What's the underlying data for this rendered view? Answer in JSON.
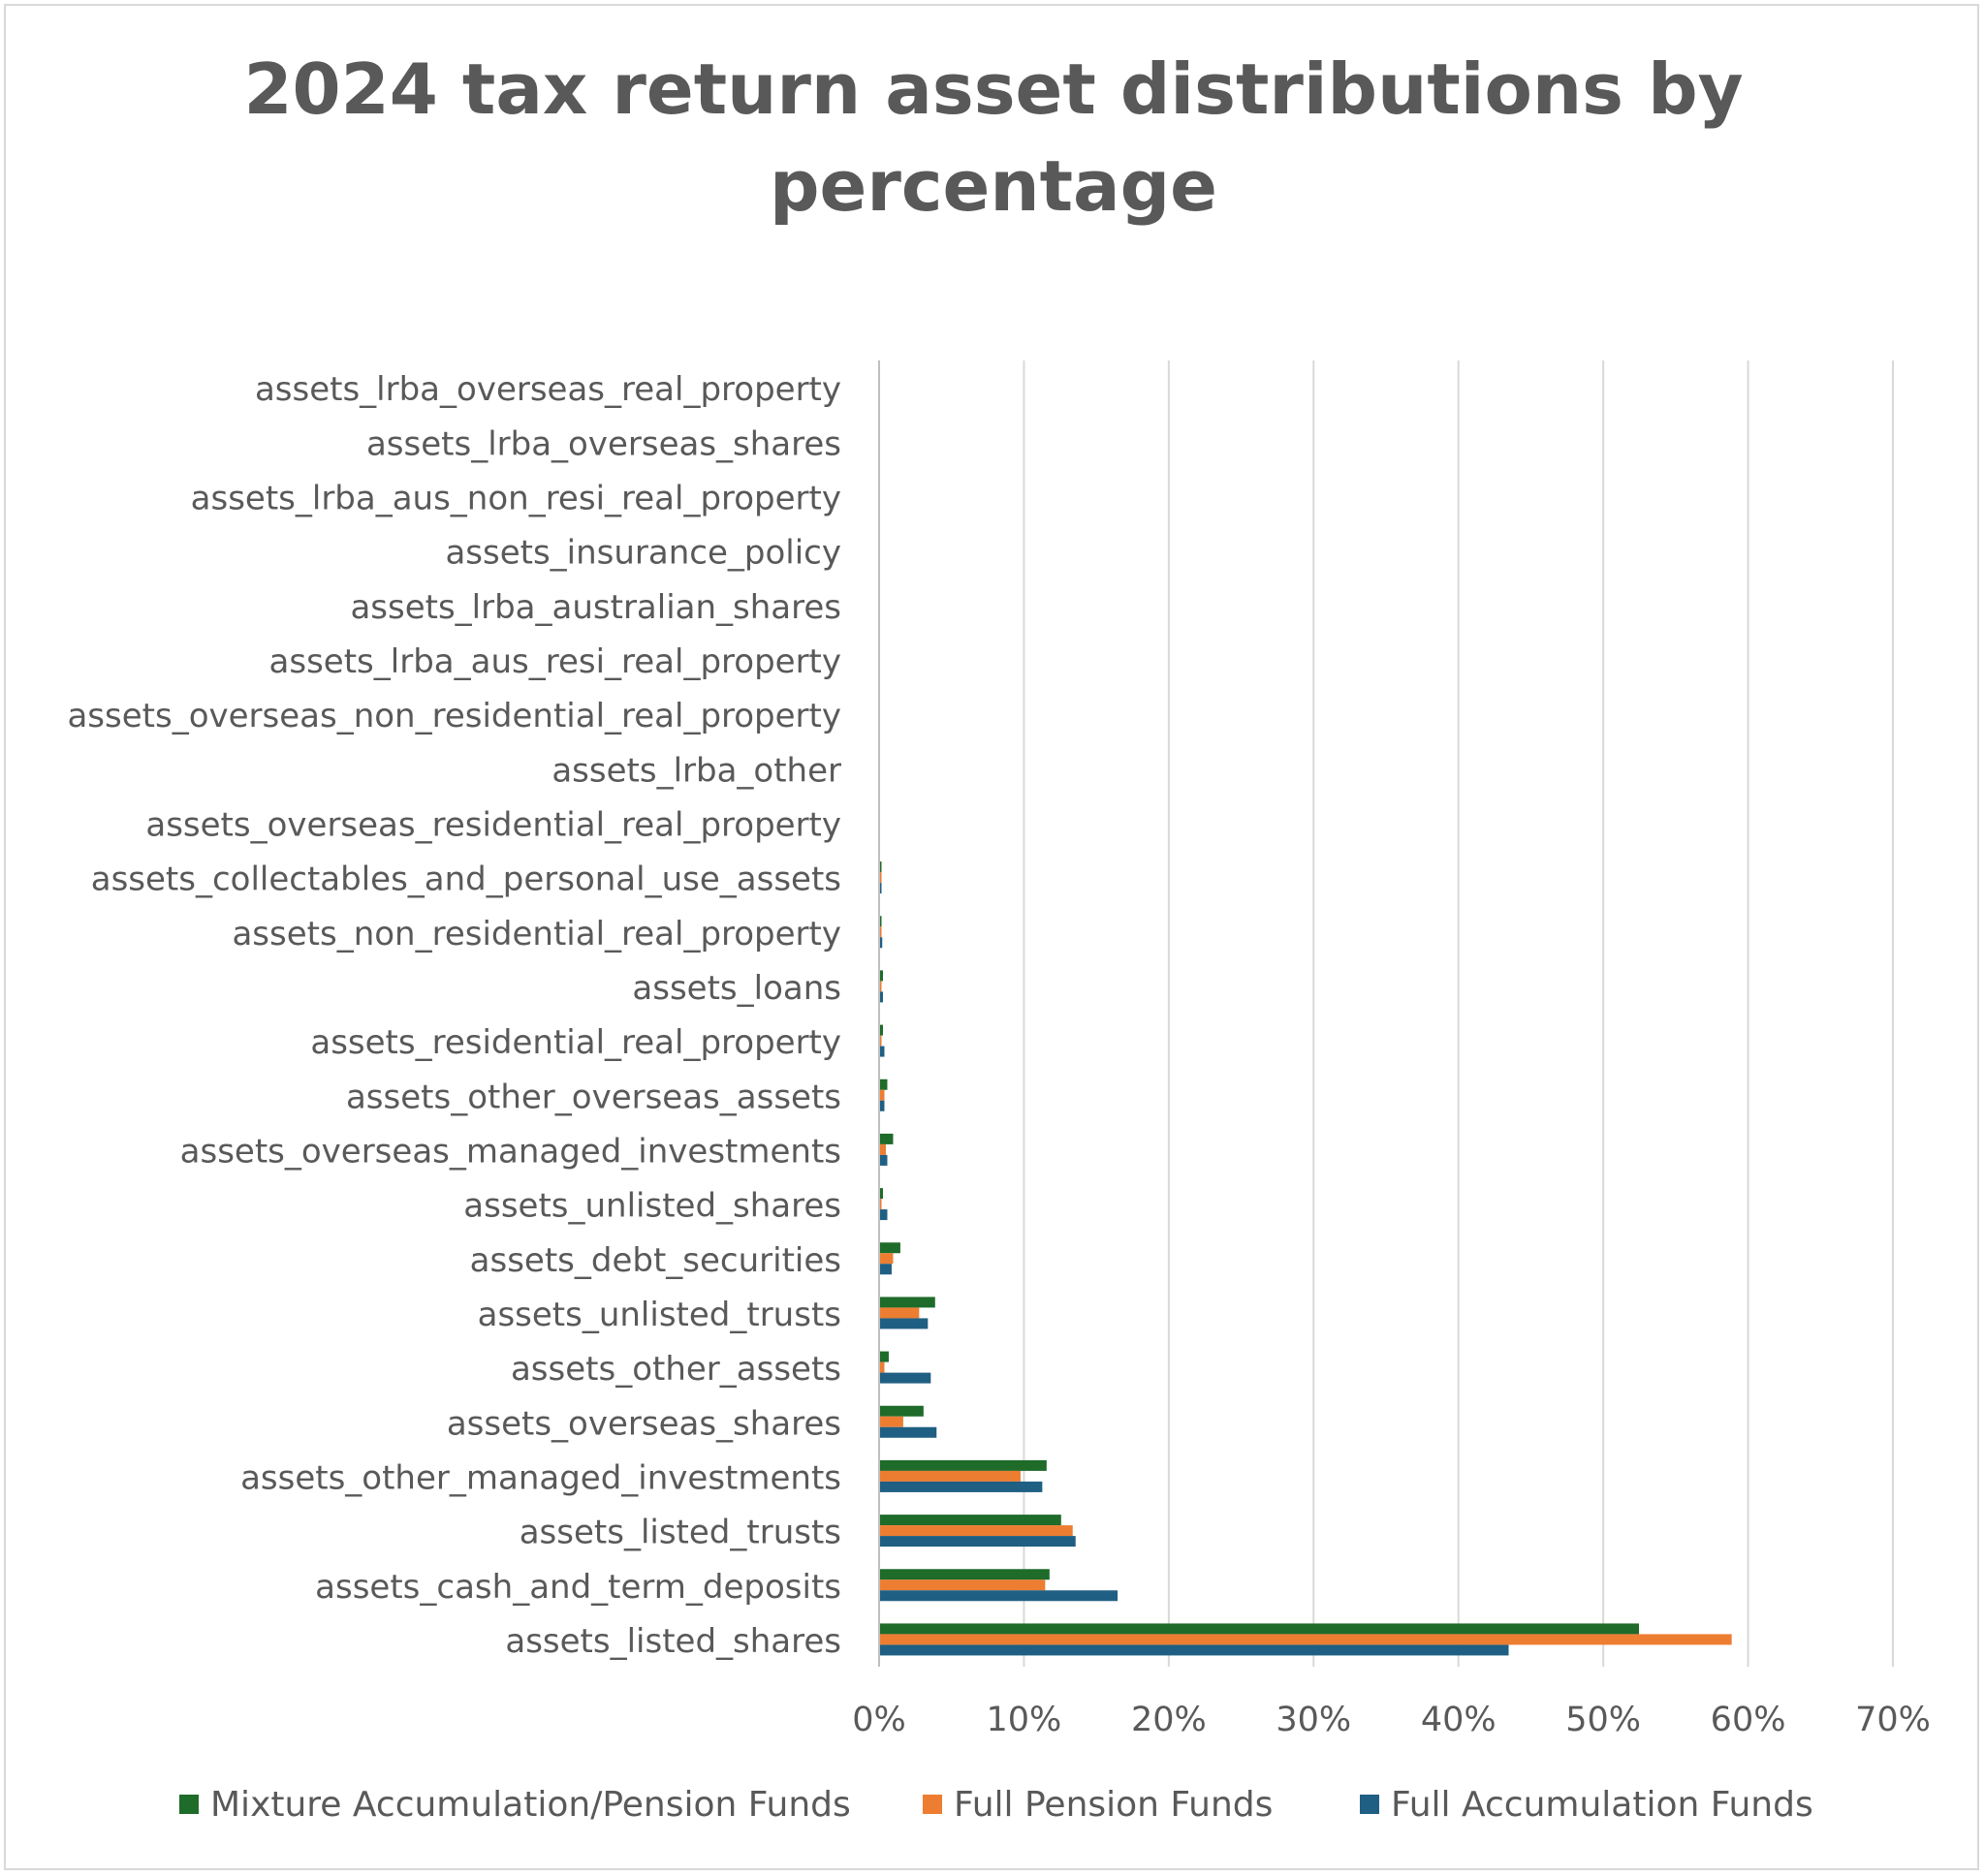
{
  "chart_data": {
    "type": "bar",
    "orientation": "horizontal",
    "title": "2024 tax return asset distributions by percentage",
    "xlabel": "",
    "ylabel": "",
    "xlim": [
      0,
      70
    ],
    "x_ticks": [
      "0%",
      "10%",
      "20%",
      "30%",
      "40%",
      "50%",
      "60%",
      "70%"
    ],
    "grid": true,
    "legend_position": "bottom",
    "categories": [
      "assets_lrba_overseas_real_property",
      "assets_lrba_overseas_shares",
      "assets_lrba_aus_non_resi_real_property",
      "assets_insurance_policy",
      "assets_lrba_australian_shares",
      "assets_lrba_aus_resi_real_property",
      "assets_overseas_non_residential_real_property",
      "assets_lrba_other",
      "assets_overseas_residential_real_property",
      "assets_collectables_and_personal_use_assets",
      "assets_non_residential_real_property",
      "assets_loans",
      "assets_residential_real_property",
      "assets_other_overseas_assets",
      "assets_overseas_managed_investments",
      "assets_unlisted_shares",
      "assets_debt_securities",
      "assets_unlisted_trusts",
      "assets_other_assets",
      "assets_overseas_shares",
      "assets_other_managed_investments",
      "assets_listed_trusts",
      "assets_cash_and_term_deposits",
      "assets_listed_shares"
    ],
    "series": [
      {
        "name": "Mixture Accumulation/Pension Funds",
        "color": "#1e6b2a",
        "values": [
          0,
          0,
          0,
          0,
          0,
          0,
          0,
          0,
          0,
          0.05,
          0.1,
          0.2,
          0.2,
          0.5,
          0.9,
          0.2,
          1.4,
          3.8,
          0.6,
          3.0,
          11.5,
          12.5,
          11.7,
          52.4
        ]
      },
      {
        "name": "Full Pension Funds",
        "color": "#ed7d31",
        "values": [
          0,
          0,
          0,
          0,
          0,
          0,
          0,
          0,
          0,
          0.02,
          0.05,
          0.1,
          0.1,
          0.3,
          0.4,
          0.1,
          0.9,
          2.7,
          0.3,
          1.6,
          9.7,
          13.3,
          11.4,
          58.8
        ]
      },
      {
        "name": "Full Accumulation Funds",
        "color": "#1f5f83",
        "values": [
          0,
          0,
          0,
          0,
          0,
          0,
          0,
          0,
          0,
          0.08,
          0.15,
          0.2,
          0.3,
          0.3,
          0.5,
          0.5,
          0.8,
          3.3,
          3.5,
          3.9,
          11.2,
          13.5,
          16.4,
          43.4
        ]
      }
    ]
  }
}
